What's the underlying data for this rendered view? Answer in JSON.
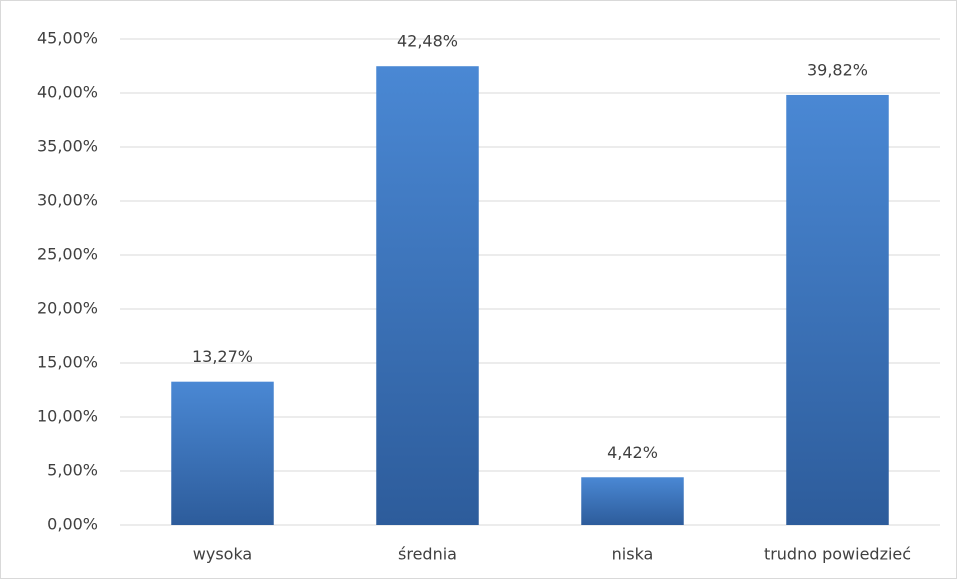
{
  "chart_data": {
    "type": "bar",
    "categories": [
      "wysoka",
      "średnia",
      "niska",
      "trudno powiedzieć"
    ],
    "values": [
      13.27,
      42.48,
      4.42,
      39.82
    ],
    "value_labels": [
      "13,27%",
      "42,48%",
      "4,42%",
      "39,82%"
    ],
    "color": "#3a72bd",
    "ylim": [
      0,
      45
    ],
    "yticks": [
      {
        "value": 0,
        "label": "0,00%"
      },
      {
        "value": 5,
        "label": "5,00%"
      },
      {
        "value": 10,
        "label": "10,00%"
      },
      {
        "value": 15,
        "label": "15,00%"
      },
      {
        "value": 20,
        "label": "20,00%"
      },
      {
        "value": 25,
        "label": "25,00%"
      },
      {
        "value": 30,
        "label": "30,00%"
      },
      {
        "value": 35,
        "label": "35,00%"
      },
      {
        "value": 40,
        "label": "40,00%"
      },
      {
        "value": 45,
        "label": "45,00%"
      }
    ],
    "grid": true
  }
}
